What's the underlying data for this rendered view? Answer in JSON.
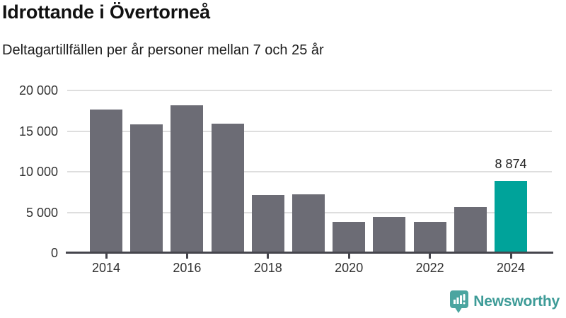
{
  "header": {
    "title": "Idrottande i Övertorneå",
    "subtitle": "Deltagartillfällen per år personer mellan 7 och 25 år"
  },
  "chart_data": {
    "type": "bar",
    "title": "Idrottande i Övertorneå",
    "subtitle": "Deltagartillfällen per år personer mellan 7 och 25 år",
    "categories": [
      "2014",
      "2015",
      "2016",
      "2017",
      "2018",
      "2019",
      "2020",
      "2021",
      "2022",
      "2023",
      "2024"
    ],
    "values": [
      17650,
      15800,
      18150,
      15950,
      7150,
      7250,
      3800,
      4450,
      3850,
      5650,
      8874
    ],
    "highlight_index": 10,
    "annotation": {
      "index": 10,
      "label": "8 874"
    },
    "xtick_every": 2,
    "yticks": [
      {
        "value": 0,
        "label": "0"
      },
      {
        "value": 5000,
        "label": "5 000"
      },
      {
        "value": 10000,
        "label": "10 000"
      },
      {
        "value": 15000,
        "label": "15 000"
      },
      {
        "value": 20000,
        "label": "20 000"
      }
    ],
    "ylim": [
      0,
      20000
    ],
    "grid": true,
    "legend": "none",
    "bar_color": "#6c6c75",
    "highlight_color": "#00a39a",
    "axis_color": "#45454c",
    "grid_color": "#dedede",
    "label_color": "#333333"
  },
  "footer": {
    "brand": "Newsworthy",
    "brand_color": "#3d9b97",
    "logo_icon": "newsworthy-speech-bubble-chart-icon",
    "logo_icon_color": "#4ba5a0"
  }
}
